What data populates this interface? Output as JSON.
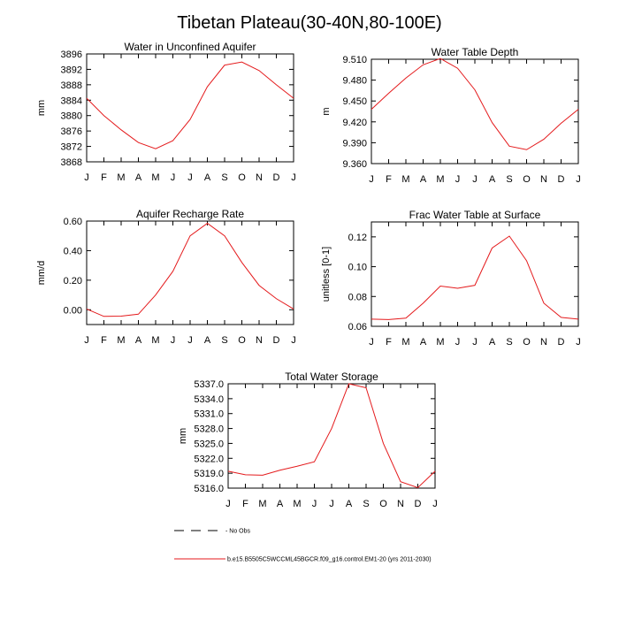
{
  "figure": {
    "title": "Tibetan Plateau(30-40N,80-100E)",
    "series_color": "#e41a1c"
  },
  "legend": {
    "obs_label": "- No Obs",
    "model_label": "b.e15.B5505C5WCCML45BGCR.f09_g16.control.EM1-20 (yrs 2011-2030)"
  },
  "chart_data": [
    {
      "type": "line",
      "title": "Water in Unconfined Aquifer",
      "ylabel": "mm",
      "xlabel": "",
      "categories": [
        "J",
        "F",
        "M",
        "A",
        "M",
        "J",
        "J",
        "A",
        "S",
        "O",
        "N",
        "D",
        "J"
      ],
      "values": [
        3884.5,
        3880.0,
        3876.3,
        3873.0,
        3871.4,
        3873.5,
        3879.0,
        3887.5,
        3893.1,
        3893.9,
        3891.7,
        3888.0,
        3884.5
      ],
      "ylim": [
        3868,
        3896
      ],
      "yticks": [
        3868,
        3872,
        3876,
        3880,
        3884,
        3888,
        3892,
        3896
      ],
      "ytick_labels": [
        "3868",
        "3872",
        "3876",
        "3880",
        "3884",
        "3888",
        "3892",
        "3896"
      ]
    },
    {
      "type": "line",
      "title": "Water Table Depth",
      "ylabel": "m",
      "xlabel": "",
      "categories": [
        "J",
        "F",
        "M",
        "A",
        "M",
        "J",
        "J",
        "A",
        "S",
        "O",
        "N",
        "D",
        "J"
      ],
      "values": [
        9.438,
        9.461,
        9.483,
        9.502,
        9.511,
        9.497,
        9.466,
        9.419,
        9.385,
        9.38,
        9.395,
        9.418,
        9.438
      ],
      "ylim": [
        9.36,
        9.51
      ],
      "yticks": [
        9.36,
        9.39,
        9.42,
        9.45,
        9.48,
        9.51
      ],
      "ytick_labels": [
        "9.360",
        "9.390",
        "9.420",
        "9.450",
        "9.480",
        "9.510"
      ]
    },
    {
      "type": "line",
      "title": "Aquifer Recharge Rate",
      "ylabel": "mm/d",
      "xlabel": "",
      "categories": [
        "J",
        "F",
        "M",
        "A",
        "M",
        "J",
        "J",
        "A",
        "S",
        "O",
        "N",
        "D",
        "J"
      ],
      "values": [
        0.005,
        -0.045,
        -0.043,
        -0.03,
        0.1,
        0.26,
        0.5,
        0.585,
        0.5,
        0.32,
        0.165,
        0.075,
        0.005
      ],
      "ylim": [
        -0.1,
        0.6
      ],
      "yticks": [
        0.0,
        0.2,
        0.4,
        0.6
      ],
      "ytick_labels": [
        "0.00",
        "0.20",
        "0.40",
        "0.60"
      ]
    },
    {
      "type": "line",
      "title": "Frac Water Table at Surface",
      "ylabel": "unitless [0-1]",
      "xlabel": "",
      "categories": [
        "J",
        "F",
        "M",
        "A",
        "M",
        "J",
        "J",
        "A",
        "S",
        "O",
        "N",
        "D",
        "J"
      ],
      "values": [
        0.0648,
        0.0645,
        0.0655,
        0.0755,
        0.087,
        0.0855,
        0.0875,
        0.1125,
        0.1205,
        0.104,
        0.0755,
        0.066,
        0.0648
      ],
      "ylim": [
        0.06,
        0.13
      ],
      "yticks": [
        0.06,
        0.08,
        0.1,
        0.12
      ],
      "ytick_labels": [
        "0.06",
        "0.08",
        "0.10",
        "0.12"
      ]
    },
    {
      "type": "line",
      "title": "Total Water Storage",
      "ylabel": "mm",
      "xlabel": "",
      "categories": [
        "J",
        "F",
        "M",
        "A",
        "M",
        "J",
        "J",
        "A",
        "S",
        "O",
        "N",
        "D",
        "J"
      ],
      "values": [
        5319.4,
        5318.7,
        5318.6,
        5319.6,
        5320.4,
        5321.3,
        5328.0,
        5337.0,
        5336.2,
        5325.0,
        5317.3,
        5316.1,
        5319.4
      ],
      "ylim": [
        5316,
        5337
      ],
      "yticks": [
        5316,
        5319,
        5322,
        5325,
        5328,
        5331,
        5334,
        5337
      ],
      "ytick_labels": [
        "5316.0",
        "5319.0",
        "5322.0",
        "5325.0",
        "5328.0",
        "5331.0",
        "5334.0",
        "5337.0"
      ]
    }
  ]
}
